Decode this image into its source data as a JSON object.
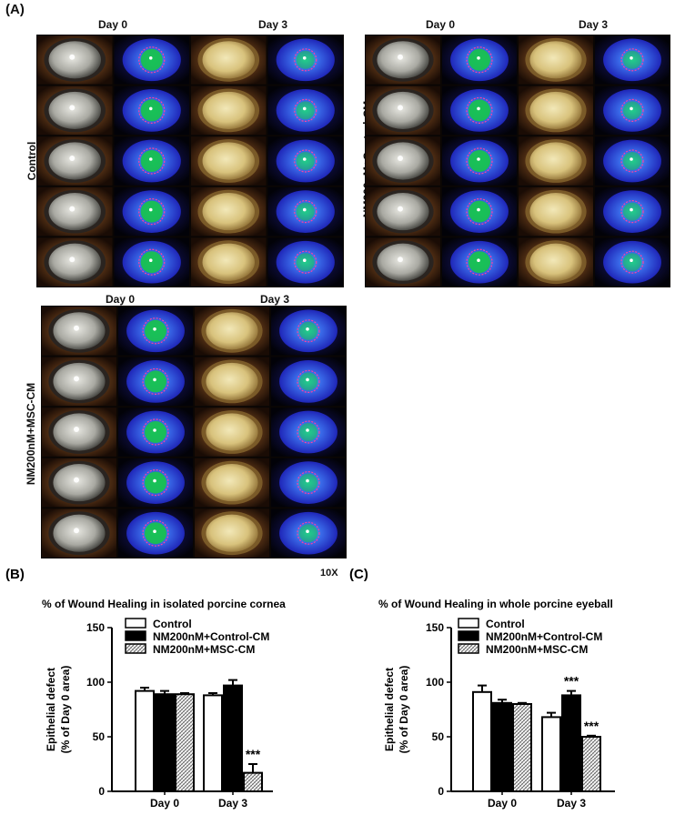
{
  "panel_a": {
    "letter": "(A)",
    "day_labels": [
      "Day 0",
      "Day 3"
    ],
    "groups": [
      "Control",
      "NM200nM+Control-CM",
      "NM200nM+MSC-CM"
    ],
    "magnification": "10X"
  },
  "colors": {
    "control_fill": "#ffffff",
    "control_cm_fill": "#000000",
    "msc_cm_pattern": "crosshatch"
  },
  "chart_data": [
    {
      "type": "bar",
      "panel": "(B)",
      "title": "% of Wound Healing in isolated porcine cornea",
      "ylabel": "Epithelial defect",
      "ylabel2": "(% of Day 0 area)",
      "xlabel": "",
      "categories": [
        "Day 0",
        "Day 3"
      ],
      "ylim": [
        0,
        150
      ],
      "yticks": [
        0,
        50,
        100,
        150
      ],
      "legend_position": "top",
      "series": [
        {
          "name": "Control",
          "values": [
            92,
            88
          ],
          "errors": [
            3,
            2
          ],
          "style": "white"
        },
        {
          "name": "NM200nM+Control-CM",
          "values": [
            89,
            97
          ],
          "errors": [
            3,
            5
          ],
          "style": "black"
        },
        {
          "name": "NM200nM+MSC-CM",
          "values": [
            89,
            17
          ],
          "errors": [
            1,
            8
          ],
          "style": "hatched"
        }
      ],
      "annotations": [
        {
          "category": "Day 3",
          "series": "NM200nM+MSC-CM",
          "text": "***"
        }
      ]
    },
    {
      "type": "bar",
      "panel": "(C)",
      "title": "% of Wound Healing in whole porcine eyeball",
      "ylabel": "Epithelial defect",
      "ylabel2": "(% of Day 0 area)",
      "xlabel": "",
      "categories": [
        "Day 0",
        "Day 3"
      ],
      "ylim": [
        0,
        150
      ],
      "yticks": [
        0,
        50,
        100,
        150
      ],
      "legend_position": "top",
      "series": [
        {
          "name": "Control",
          "values": [
            91,
            68
          ],
          "errors": [
            6,
            4
          ],
          "style": "white"
        },
        {
          "name": "NM200nM+Control-CM",
          "values": [
            81,
            88
          ],
          "errors": [
            3,
            4
          ],
          "style": "black"
        },
        {
          "name": "NM200nM+MSC-CM",
          "values": [
            80,
            50
          ],
          "errors": [
            1,
            1
          ],
          "style": "hatched"
        }
      ],
      "annotations": [
        {
          "category": "Day 3",
          "series": "NM200nM+Control-CM",
          "text": "***"
        },
        {
          "category": "Day 3",
          "series": "NM200nM+MSC-CM",
          "text": "***"
        }
      ]
    }
  ]
}
